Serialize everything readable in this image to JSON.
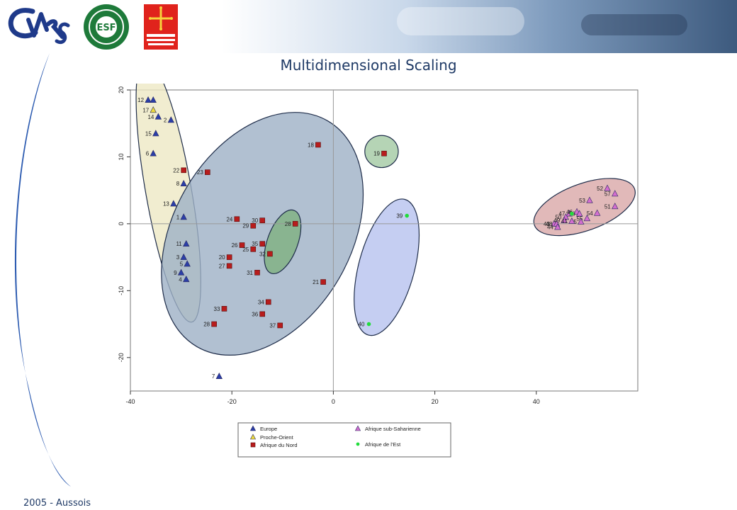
{
  "slide": {
    "title": "Multidimensional Scaling",
    "footer": "2005 - Aussois"
  },
  "logos": {
    "esf_name": "EUROPEAN SCIENCE FOUNDATION",
    "esf_letters": "ESF",
    "region_name": "CONSEIL RÉGIONAL MIDI-PYRÉNÉES"
  },
  "colors": {
    "title": "#1f3a66",
    "europe": "#2b3ea8",
    "proche": "#f0dd3c",
    "nord": "#b81c1c",
    "subsah": "#d46ed0",
    "est": "#22dd3c"
  },
  "chart_data": {
    "type": "scatter",
    "xlim": [
      -40,
      60
    ],
    "ylim": [
      -25,
      20
    ],
    "xticks": [
      -40,
      -20,
      0,
      20,
      40
    ],
    "yticks": [
      -20,
      -10,
      0,
      10,
      20
    ],
    "yticks_rotated": true,
    "grid": false,
    "zero_lines": true,
    "legend_position": "bottom-center",
    "series": [
      {
        "name": "Europe",
        "marker": "triangle",
        "color": "#2b3ea8",
        "points": [
          {
            "label": "12",
            "x": -36.5,
            "y": 18.5
          },
          {
            "label": "",
            "x": -35.5,
            "y": 18.5
          },
          {
            "label": "14",
            "x": -34.5,
            "y": 16.0
          },
          {
            "label": "2",
            "x": -32.0,
            "y": 15.5
          },
          {
            "label": "15",
            "x": -35.0,
            "y": 13.5
          },
          {
            "label": "6",
            "x": -35.5,
            "y": 10.5
          },
          {
            "label": "8",
            "x": -29.5,
            "y": 6.0
          },
          {
            "label": "13",
            "x": -31.5,
            "y": 3.0
          },
          {
            "label": "1",
            "x": -29.5,
            "y": 1.0
          },
          {
            "label": "11",
            "x": -29.0,
            "y": -3.0
          },
          {
            "label": "3",
            "x": -29.5,
            "y": -5.0
          },
          {
            "label": "5",
            "x": -28.8,
            "y": -6.0
          },
          {
            "label": "9",
            "x": -30.0,
            "y": -7.3
          },
          {
            "label": "4",
            "x": -29.0,
            "y": -8.3
          },
          {
            "label": "7",
            "x": -22.5,
            "y": -22.8
          }
        ]
      },
      {
        "name": "Proche-Orient",
        "marker": "triangle",
        "color": "#f0dd3c",
        "points": [
          {
            "label": "17",
            "x": -35.5,
            "y": 17.0
          }
        ]
      },
      {
        "name": "Afrique du Nord",
        "marker": "square",
        "color": "#b81c1c",
        "points": [
          {
            "label": "22",
            "x": -29.5,
            "y": 8.0
          },
          {
            "label": "23",
            "x": -24.8,
            "y": 7.7
          },
          {
            "label": "18",
            "x": -3.0,
            "y": 11.8
          },
          {
            "label": "19",
            "x": 10.0,
            "y": 10.5
          },
          {
            "label": "24",
            "x": -19.0,
            "y": 0.7
          },
          {
            "label": "30",
            "x": -14.0,
            "y": 0.5
          },
          {
            "label": "29",
            "x": -15.8,
            "y": -0.3
          },
          {
            "label": "28",
            "x": -7.5,
            "y": 0.0
          },
          {
            "label": "26",
            "x": -18.0,
            "y": -3.2
          },
          {
            "label": "35",
            "x": -14.0,
            "y": -3.0
          },
          {
            "label": "20",
            "x": -20.5,
            "y": -5.0
          },
          {
            "label": "25",
            "x": -15.8,
            "y": -3.8
          },
          {
            "label": "32",
            "x": -12.5,
            "y": -4.5
          },
          {
            "label": "27",
            "x": -20.5,
            "y": -6.3
          },
          {
            "label": "31",
            "x": -15.0,
            "y": -7.3
          },
          {
            "label": "21",
            "x": -2.0,
            "y": -8.7
          },
          {
            "label": "34",
            "x": -12.8,
            "y": -11.7
          },
          {
            "label": "33",
            "x": -21.5,
            "y": -12.7
          },
          {
            "label": "36",
            "x": -14.0,
            "y": -13.5
          },
          {
            "label": "28",
            "x": -23.5,
            "y": -15.0
          },
          {
            "label": "37",
            "x": -10.5,
            "y": -15.2
          }
        ]
      },
      {
        "name": "Afrique sub-Saharienne",
        "marker": "triangle",
        "color": "#d46ed0",
        "points": [
          {
            "label": "52",
            "x": 54.0,
            "y": 5.3
          },
          {
            "label": "57",
            "x": 55.5,
            "y": 4.5
          },
          {
            "label": "53",
            "x": 50.5,
            "y": 3.5
          },
          {
            "label": "51",
            "x": 55.5,
            "y": 2.6
          },
          {
            "label": "47",
            "x": 46.5,
            "y": 1.5
          },
          {
            "label": "46",
            "x": 48.0,
            "y": 1.8
          },
          {
            "label": "56",
            "x": 48.5,
            "y": 1.5
          },
          {
            "label": "54",
            "x": 52.0,
            "y": 1.6
          },
          {
            "label": "50",
            "x": 45.8,
            "y": 1.0
          },
          {
            "label": "55",
            "x": 50.0,
            "y": 0.8
          },
          {
            "label": "45",
            "x": 48.8,
            "y": 0.3
          },
          {
            "label": "43",
            "x": 43.5,
            "y": 0.0
          },
          {
            "label": "48",
            "x": 44.0,
            "y": 0.0
          },
          {
            "label": "44",
            "x": 44.2,
            "y": -0.5
          },
          {
            "label": "49",
            "x": 45.5,
            "y": 0.5
          },
          {
            "label": "41",
            "x": 47.0,
            "y": 0.4
          }
        ]
      },
      {
        "name": "Afrique de l'Est",
        "marker": "circle",
        "color": "#22dd3c",
        "points": [
          {
            "label": "39",
            "x": 14.5,
            "y": 1.2
          },
          {
            "label": "40",
            "x": 7.0,
            "y": -15.0
          },
          {
            "label": "",
            "x": 47.0,
            "y": 1.5
          }
        ]
      }
    ],
    "legend": [
      "Europe",
      "Proche-Orient",
      "Afrique du Nord",
      "Afrique sub-Saharienne",
      "Afrique de l'Est"
    ],
    "ellipses": [
      {
        "group": "Europe",
        "color": "#ede9c4",
        "cx": -32.5,
        "cy": 5,
        "rx": 4.5,
        "ry": 20,
        "angle": -10
      },
      {
        "group": "Afrique du Nord",
        "color": "#9eb0c6",
        "cx": -14,
        "cy": -1.5,
        "rx": 17.5,
        "ry": 19.5,
        "angle": 30
      },
      {
        "group": "Afrique du Nord",
        "color": "#a3c9a3",
        "cx": 9.5,
        "cy": 10.8,
        "rx": 3.3,
        "ry": 2.4,
        "angle": 0
      },
      {
        "group": "Afrique du Nord",
        "color": "#7fb07f",
        "cx": -10,
        "cy": -2.7,
        "rx": 3.0,
        "ry": 5.0,
        "angle": 20
      },
      {
        "group": "Afrique de l'Est",
        "color": "#b7c2ef",
        "cx": 10.5,
        "cy": -6.5,
        "rx": 5.5,
        "ry": 10.5,
        "angle": 15
      },
      {
        "group": "Afrique sub-Saharienne",
        "color": "#d9a8a8",
        "cx": 49.5,
        "cy": 2.5,
        "rx": 10.5,
        "ry": 3.5,
        "angle": -20
      }
    ]
  }
}
